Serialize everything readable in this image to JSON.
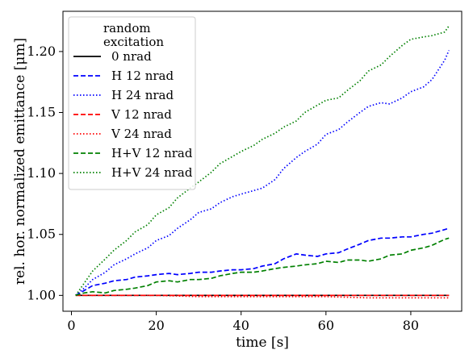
{
  "chart_data": {
    "type": "line",
    "xlabel": "time [s]",
    "ylabel": "rel. hor. normalized emittance [μm]",
    "xlim": [
      -2,
      92
    ],
    "ylim": [
      0.987,
      1.233
    ],
    "xticks": [
      0,
      20,
      40,
      60,
      80
    ],
    "yticks": [
      1.0,
      1.05,
      1.1,
      1.15,
      1.2
    ],
    "ytick_labels": [
      "1.00",
      "1.05",
      "1.10",
      "1.15",
      "1.20"
    ],
    "grid": false,
    "legend": {
      "title": "random excitation",
      "title_lines": [
        "random",
        "excitation"
      ],
      "placement": "top-left"
    },
    "series": [
      {
        "name": "0 nrad",
        "color": "#000000",
        "dash": "solid",
        "x": [
          1,
          10,
          20,
          30,
          40,
          50,
          60,
          70,
          80,
          89
        ],
        "values": [
          1.0,
          1.0,
          1.0,
          1.0,
          1.0,
          1.0,
          1.0,
          1.0,
          1.0,
          1.0
        ]
      },
      {
        "name": "H 12 nrad",
        "color": "#0000ff",
        "dash": "dashed",
        "x": [
          1,
          3,
          5,
          8,
          10,
          13,
          15,
          18,
          20,
          23,
          25,
          28,
          30,
          33,
          35,
          38,
          40,
          43,
          45,
          48,
          50,
          53,
          55,
          58,
          60,
          63,
          65,
          68,
          70,
          73,
          75,
          78,
          80,
          83,
          85,
          88,
          89
        ],
        "values": [
          1.0,
          1.004,
          1.008,
          1.01,
          1.012,
          1.013,
          1.015,
          1.016,
          1.017,
          1.018,
          1.017,
          1.018,
          1.019,
          1.019,
          1.02,
          1.021,
          1.021,
          1.022,
          1.024,
          1.026,
          1.03,
          1.034,
          1.033,
          1.032,
          1.034,
          1.035,
          1.038,
          1.042,
          1.045,
          1.047,
          1.047,
          1.048,
          1.048,
          1.05,
          1.051,
          1.054,
          1.055
        ]
      },
      {
        "name": "H 24 nrad",
        "color": "#0000ff",
        "dash": "dotted",
        "x": [
          1,
          3,
          5,
          8,
          10,
          13,
          15,
          18,
          20,
          23,
          25,
          28,
          30,
          33,
          35,
          38,
          40,
          43,
          45,
          48,
          50,
          53,
          55,
          58,
          60,
          63,
          65,
          68,
          70,
          73,
          75,
          78,
          80,
          83,
          85,
          88,
          89
        ],
        "values": [
          1.0,
          1.006,
          1.013,
          1.019,
          1.025,
          1.03,
          1.034,
          1.039,
          1.045,
          1.049,
          1.055,
          1.062,
          1.068,
          1.071,
          1.076,
          1.081,
          1.083,
          1.086,
          1.088,
          1.095,
          1.104,
          1.113,
          1.118,
          1.124,
          1.132,
          1.136,
          1.142,
          1.15,
          1.155,
          1.158,
          1.157,
          1.162,
          1.167,
          1.171,
          1.177,
          1.193,
          1.201
        ]
      },
      {
        "name": "V 12 nrad",
        "color": "#ff0000",
        "dash": "dashed",
        "x": [
          1,
          10,
          20,
          30,
          40,
          50,
          60,
          70,
          80,
          89
        ],
        "values": [
          1.0,
          1.0,
          1.0,
          1.0,
          1.0,
          1.0,
          1.0,
          1.0,
          1.0,
          1.0
        ]
      },
      {
        "name": "V 24 nrad",
        "color": "#ff0000",
        "dash": "dotted",
        "x": [
          1,
          10,
          20,
          30,
          40,
          50,
          60,
          70,
          80,
          89
        ],
        "values": [
          1.0,
          1.0,
          1.0,
          0.999,
          0.999,
          0.999,
          0.999,
          0.998,
          0.998,
          0.998
        ]
      },
      {
        "name": "H+V 12 nrad",
        "color": "#008000",
        "dash": "dashed",
        "x": [
          1,
          3,
          5,
          8,
          10,
          13,
          15,
          18,
          20,
          23,
          25,
          28,
          30,
          33,
          35,
          38,
          40,
          43,
          45,
          48,
          50,
          53,
          55,
          58,
          60,
          63,
          65,
          68,
          70,
          73,
          75,
          78,
          80,
          83,
          85,
          88,
          89
        ],
        "values": [
          1.0,
          1.002,
          1.003,
          1.002,
          1.004,
          1.005,
          1.006,
          1.008,
          1.011,
          1.012,
          1.011,
          1.013,
          1.013,
          1.014,
          1.016,
          1.018,
          1.019,
          1.019,
          1.02,
          1.022,
          1.023,
          1.024,
          1.025,
          1.026,
          1.028,
          1.027,
          1.029,
          1.029,
          1.028,
          1.03,
          1.033,
          1.034,
          1.037,
          1.039,
          1.041,
          1.046,
          1.047
        ]
      },
      {
        "name": "H+V 24 nrad",
        "color": "#008000",
        "dash": "dotted",
        "x": [
          1,
          3,
          5,
          8,
          10,
          13,
          15,
          18,
          20,
          23,
          25,
          28,
          30,
          33,
          35,
          38,
          40,
          43,
          45,
          48,
          50,
          53,
          55,
          58,
          60,
          63,
          65,
          68,
          70,
          73,
          75,
          78,
          80,
          83,
          85,
          88,
          89
        ],
        "values": [
          1.0,
          1.01,
          1.02,
          1.03,
          1.037,
          1.045,
          1.052,
          1.058,
          1.066,
          1.072,
          1.08,
          1.088,
          1.093,
          1.101,
          1.108,
          1.114,
          1.118,
          1.123,
          1.128,
          1.133,
          1.138,
          1.143,
          1.15,
          1.156,
          1.16,
          1.162,
          1.168,
          1.176,
          1.184,
          1.189,
          1.196,
          1.205,
          1.21,
          1.212,
          1.213,
          1.216,
          1.221
        ]
      }
    ]
  }
}
